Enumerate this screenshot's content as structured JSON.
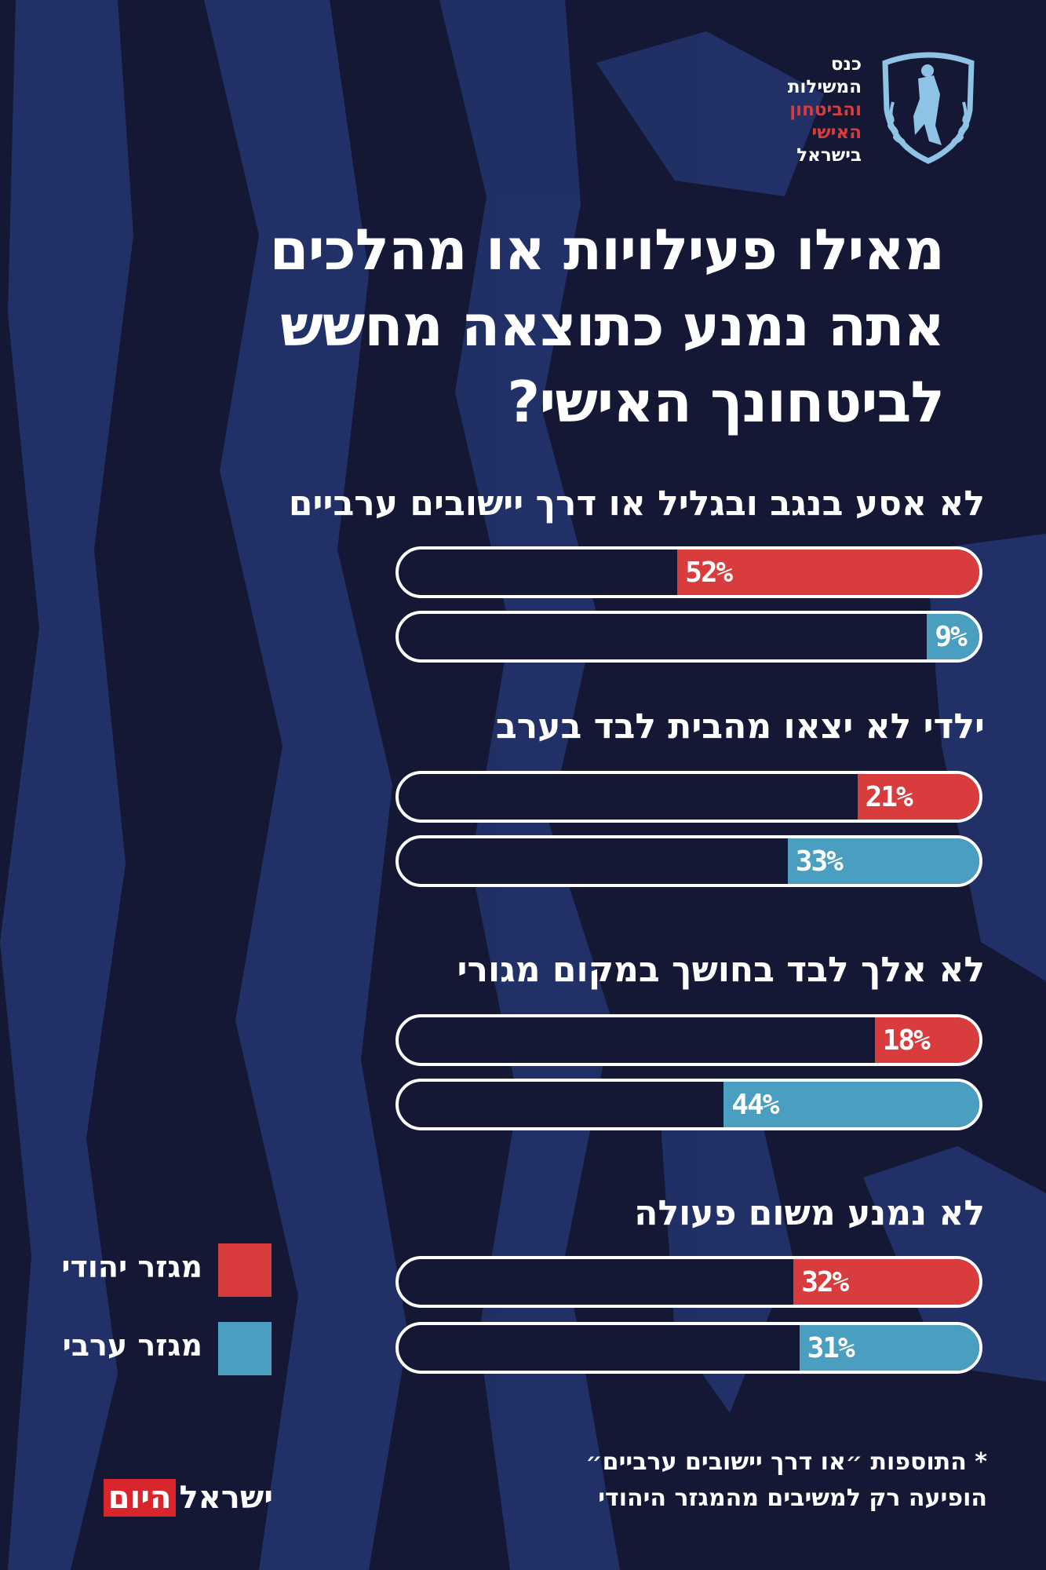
{
  "logo": {
    "lines": [
      "כנס",
      "המשילות",
      "והביטחון",
      "האישי",
      "בישראל"
    ],
    "icon": "shield-knight-laurel-icon"
  },
  "title": {
    "lines": [
      "מאילו פעילויות או מהלכים",
      "אתה נמנע כתוצאה מחשש",
      "לביטחונך האישי?"
    ]
  },
  "colors": {
    "background": "#141835",
    "jewish": "#d83c3c",
    "arab": "#4a9fc0",
    "bar_outline": "#ffffff"
  },
  "chart_data": {
    "type": "bar",
    "orientation": "horizontal",
    "categories": [
      "לא אסע בנגב ובגליל או דרך יישובים ערביים",
      "ילדי לא יצאו מהבית לבד בערב",
      "לא אלך לבד בחושך במקום מגורי",
      "לא נמנע משום פעולה"
    ],
    "series": [
      {
        "name": "מגזר יהודי",
        "color": "#d83c3c",
        "values": [
          52,
          21,
          18,
          32
        ],
        "labels": [
          "52%",
          "21%",
          "18%",
          "32%"
        ]
      },
      {
        "name": "מגזר ערבי",
        "color": "#4a9fc0",
        "values": [
          9,
          33,
          44,
          31
        ],
        "labels": [
          "9%",
          "33%",
          "44%",
          "31%"
        ]
      }
    ],
    "xlim": [
      0,
      100
    ],
    "unit": "%",
    "legend_position": "bottom-left"
  },
  "legend": {
    "items": [
      {
        "label": "מגזר יהודי",
        "color": "#d83c3c"
      },
      {
        "label": "מגזר ערבי",
        "color": "#4a9fc0"
      }
    ]
  },
  "footnote": {
    "lines": [
      "* התוספות ״או דרך יישובים ערביים״",
      "הופיעה רק למשיבים מהמגזר היהודי"
    ]
  },
  "publisher": {
    "part1": "ישראל",
    "part2": "היום"
  }
}
